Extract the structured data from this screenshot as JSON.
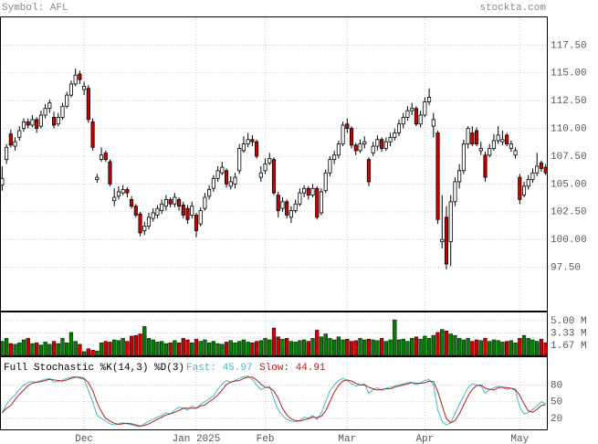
{
  "chart_data": [
    {
      "type": "candlestick",
      "title": "Symbol: AFL",
      "source": "stockta.com",
      "up_color": "#ffffff",
      "down_color": "#cc0000",
      "xlim": [
        -0.5,
        126.5
      ],
      "xticks": [
        {
          "value": 19,
          "label": "Dec"
        },
        {
          "value": 45,
          "label": "Jan 2025"
        },
        {
          "value": 61,
          "label": "Feb"
        },
        {
          "value": 80,
          "label": "Mar"
        },
        {
          "value": 98,
          "label": "Apr"
        },
        {
          "value": 120,
          "label": "May"
        }
      ],
      "ylim": [
        93.6,
        120
      ],
      "yticks": [
        {
          "value": 97.5,
          "label": "97.50"
        },
        {
          "value": 100,
          "label": "100.00"
        },
        {
          "value": 102.5,
          "label": "102.50"
        },
        {
          "value": 105,
          "label": "105.00"
        },
        {
          "value": 107.5,
          "label": "107.50"
        },
        {
          "value": 110,
          "label": "110.00"
        },
        {
          "value": 112.5,
          "label": "112.50"
        },
        {
          "value": 115,
          "label": "115.00"
        },
        {
          "value": 117.5,
          "label": "117.50"
        }
      ],
      "grid": true,
      "ohlc": [
        [
          104.9,
          106.6,
          104.4,
          105.5
        ],
        [
          107.2,
          108.6,
          106.8,
          108.3
        ],
        [
          109.5,
          109.9,
          108.3,
          108.5
        ],
        [
          108.4,
          109.2,
          108.0,
          108.8
        ],
        [
          109.2,
          110.2,
          108.9,
          109.8
        ],
        [
          110.0,
          110.9,
          109.7,
          110.6
        ],
        [
          110.6,
          110.9,
          110.0,
          110.3
        ],
        [
          110.3,
          111.2,
          110.1,
          110.8
        ],
        [
          110.8,
          111.0,
          109.6,
          110.0
        ],
        [
          110.2,
          111.6,
          110.0,
          111.2
        ],
        [
          111.2,
          112.2,
          110.9,
          111.8
        ],
        [
          111.8,
          112.6,
          111.4,
          112.3
        ],
        [
          111.0,
          111.5,
          110.0,
          110.3
        ],
        [
          110.4,
          111.4,
          110.2,
          111.0
        ],
        [
          111.0,
          112.3,
          110.8,
          112.0
        ],
        [
          112.0,
          113.3,
          111.8,
          113.0
        ],
        [
          113.0,
          114.3,
          112.8,
          114.0
        ],
        [
          114.0,
          115.4,
          113.8,
          114.8
        ],
        [
          114.9,
          115.2,
          114.0,
          114.4
        ],
        [
          113.5,
          114.2,
          113.0,
          113.8
        ],
        [
          113.6,
          113.9,
          110.5,
          110.8
        ],
        [
          110.6,
          110.9,
          108.0,
          108.3
        ],
        [
          105.4,
          105.9,
          105.1,
          105.6
        ],
        [
          107.2,
          108.3,
          107.0,
          107.6
        ],
        [
          107.8,
          108.0,
          107.0,
          107.2
        ],
        [
          107.0,
          107.2,
          104.8,
          105.0
        ],
        [
          103.5,
          104.6,
          103.0,
          103.8
        ],
        [
          103.9,
          104.8,
          103.6,
          104.3
        ],
        [
          104.2,
          104.9,
          104.0,
          104.5
        ],
        [
          104.5,
          104.7,
          103.8,
          104.2
        ],
        [
          103.6,
          103.9,
          102.8,
          103.0
        ],
        [
          103.0,
          103.2,
          102.0,
          102.2
        ],
        [
          102.3,
          102.5,
          100.3,
          100.6
        ],
        [
          100.8,
          101.6,
          100.4,
          101.2
        ],
        [
          101.2,
          102.4,
          100.9,
          102.0
        ],
        [
          101.9,
          102.8,
          101.6,
          102.4
        ],
        [
          102.2,
          103.1,
          101.9,
          102.8
        ],
        [
          102.6,
          103.6,
          102.3,
          103.2
        ],
        [
          103.0,
          104.0,
          102.6,
          103.6
        ],
        [
          103.6,
          103.8,
          102.9,
          103.2
        ],
        [
          103.2,
          104.2,
          102.9,
          103.8
        ],
        [
          103.6,
          103.8,
          102.6,
          103.0
        ],
        [
          103.1,
          103.4,
          101.9,
          102.2
        ],
        [
          102.8,
          103.1,
          101.4,
          101.8
        ],
        [
          102.2,
          103.4,
          101.9,
          103.0
        ],
        [
          102.2,
          102.4,
          100.2,
          100.8
        ],
        [
          101.4,
          102.9,
          101.2,
          102.6
        ],
        [
          102.8,
          104.2,
          102.6,
          103.8
        ],
        [
          103.9,
          104.9,
          103.6,
          104.5
        ],
        [
          104.6,
          105.8,
          104.3,
          105.5
        ],
        [
          105.5,
          106.6,
          105.2,
          106.2
        ],
        [
          106.0,
          107.0,
          105.8,
          106.5
        ],
        [
          106.2,
          106.4,
          104.7,
          105.0
        ],
        [
          104.8,
          105.7,
          104.5,
          105.2
        ],
        [
          105.0,
          106.0,
          104.6,
          105.6
        ],
        [
          106.2,
          108.6,
          105.9,
          108.2
        ],
        [
          108.0,
          109.3,
          107.8,
          108.6
        ],
        [
          108.6,
          109.6,
          108.3,
          109.0
        ],
        [
          109.0,
          109.4,
          108.4,
          108.8
        ],
        [
          108.8,
          109.0,
          107.3,
          107.5
        ],
        [
          105.6,
          106.6,
          105.2,
          106.0
        ],
        [
          106.2,
          107.3,
          105.9,
          106.8
        ],
        [
          106.9,
          107.8,
          106.7,
          107.3
        ],
        [
          107.2,
          107.4,
          104.0,
          104.2
        ],
        [
          104.0,
          104.3,
          102.0,
          102.6
        ],
        [
          102.8,
          103.8,
          102.5,
          103.4
        ],
        [
          103.4,
          103.6,
          101.9,
          102.2
        ],
        [
          102.0,
          103.0,
          101.5,
          102.6
        ],
        [
          102.6,
          103.6,
          102.4,
          103.2
        ],
        [
          103.2,
          104.6,
          103.0,
          104.2
        ],
        [
          104.2,
          104.9,
          103.8,
          104.6
        ],
        [
          104.6,
          104.8,
          103.6,
          104.0
        ],
        [
          104.0,
          105.0,
          103.8,
          104.6
        ],
        [
          104.6,
          104.8,
          101.8,
          102.0
        ],
        [
          102.4,
          104.6,
          102.2,
          104.3
        ],
        [
          104.4,
          106.3,
          104.2,
          106.0
        ],
        [
          106.0,
          107.5,
          105.7,
          107.2
        ],
        [
          107.2,
          108.0,
          106.8,
          107.6
        ],
        [
          107.6,
          108.9,
          107.3,
          108.6
        ],
        [
          108.6,
          110.6,
          108.4,
          110.3
        ],
        [
          110.4,
          110.9,
          109.6,
          110.0
        ],
        [
          110.0,
          110.2,
          108.2,
          108.5
        ],
        [
          108.5,
          108.7,
          107.6,
          108.0
        ],
        [
          108.0,
          109.0,
          107.8,
          108.6
        ],
        [
          108.6,
          109.3,
          108.2,
          108.8
        ],
        [
          107.2,
          107.4,
          104.8,
          105.2
        ],
        [
          107.8,
          108.8,
          107.5,
          108.4
        ],
        [
          108.4,
          109.4,
          108.0,
          109.0
        ],
        [
          109.0,
          109.2,
          107.9,
          108.2
        ],
        [
          108.2,
          109.2,
          108.0,
          108.8
        ],
        [
          108.8,
          109.6,
          108.4,
          109.2
        ],
        [
          109.2,
          110.0,
          108.9,
          109.6
        ],
        [
          109.6,
          110.8,
          109.3,
          110.4
        ],
        [
          110.4,
          111.4,
          110.0,
          111.0
        ],
        [
          111.0,
          112.0,
          110.7,
          111.6
        ],
        [
          111.6,
          112.3,
          111.2,
          111.8
        ],
        [
          111.8,
          112.0,
          110.2,
          110.4
        ],
        [
          110.4,
          111.6,
          110.1,
          111.2
        ],
        [
          111.2,
          112.8,
          111.0,
          112.4
        ],
        [
          112.4,
          113.6,
          112.1,
          112.8
        ],
        [
          110.2,
          111.4,
          109.2,
          110.8
        ],
        [
          109.6,
          109.8,
          101.4,
          101.8
        ],
        [
          99.8,
          104.0,
          99.2,
          100.0
        ],
        [
          102.0,
          103.0,
          97.3,
          97.8
        ],
        [
          99.8,
          104.0,
          97.6,
          103.4
        ],
        [
          103.4,
          105.6,
          103.0,
          105.2
        ],
        [
          105.2,
          106.8,
          104.6,
          106.2
        ],
        [
          106.2,
          109.0,
          105.9,
          108.6
        ],
        [
          108.6,
          110.2,
          108.2,
          110.0
        ],
        [
          109.6,
          110.2,
          108.4,
          108.6
        ],
        [
          109.8,
          110.1,
          108.4,
          108.6
        ],
        [
          108.0,
          108.8,
          107.6,
          108.2
        ],
        [
          107.6,
          107.9,
          105.2,
          105.6
        ],
        [
          107.6,
          108.6,
          107.4,
          108.2
        ],
        [
          108.2,
          109.5,
          108.0,
          108.9
        ],
        [
          108.9,
          110.2,
          108.6,
          109.4
        ],
        [
          108.8,
          109.8,
          108.5,
          109.0
        ],
        [
          109.4,
          109.6,
          108.4,
          108.6
        ],
        [
          108.2,
          108.9,
          107.9,
          108.6
        ],
        [
          107.6,
          108.3,
          107.3,
          108.0
        ],
        [
          105.6,
          105.9,
          103.2,
          103.6
        ],
        [
          104.0,
          105.2,
          103.8,
          104.8
        ],
        [
          104.8,
          105.8,
          104.5,
          105.4
        ],
        [
          105.4,
          106.4,
          105.1,
          106.0
        ],
        [
          106.0,
          107.8,
          105.7,
          106.6
        ],
        [
          106.9,
          107.1,
          106.1,
          106.4
        ],
        [
          106.5,
          106.8,
          105.8,
          106.0
        ]
      ]
    },
    {
      "type": "bar",
      "up_color": "#008000",
      "down_color": "#cc0000",
      "ylim": [
        0.3,
        6.1
      ],
      "yticks": [
        {
          "value": 1.67,
          "label": "1.67 M"
        },
        {
          "value": 3.33,
          "label": "3.33 M"
        },
        {
          "value": 5,
          "label": "5.00 M"
        }
      ],
      "values": [
        2.2,
        2.6,
        1.9,
        1.8,
        2.0,
        2.4,
        2.6,
        1.9,
        2.0,
        1.7,
        2.1,
        1.8,
        2.2,
        1.9,
        2.6,
        2.0,
        3.4,
        2.2,
        1.8,
        0.8,
        1.2,
        1.0,
        0.9,
        2.0,
        2.2,
        2.1,
        2.4,
        2.3,
        2.6,
        2.2,
        2.9,
        3.0,
        3.2,
        4.2,
        2.6,
        2.4,
        2.1,
        2.2,
        1.9,
        2.0,
        2.3,
        2.0,
        2.6,
        2.4,
        2.0,
        2.5,
        2.2,
        2.4,
        2.0,
        2.2,
        1.9,
        1.8,
        2.1,
        2.3,
        2.0,
        2.2,
        2.4,
        2.1,
        2.0,
        2.2,
        2.3,
        2.6,
        2.4,
        4.0,
        2.8,
        2.5,
        2.6,
        2.2,
        2.1,
        2.3,
        2.4,
        2.2,
        2.6,
        3.7,
        2.8,
        3.2,
        2.6,
        2.4,
        2.8,
        2.4,
        2.5,
        2.2,
        2.3,
        2.6,
        2.4,
        2.5,
        2.4,
        2.3,
        2.6,
        2.2,
        2.4,
        5.1,
        2.4,
        2.5,
        2.2,
        2.6,
        2.8,
        2.5,
        2.9,
        2.6,
        3.0,
        3.4,
        3.8,
        3.6,
        3.2,
        3.0,
        2.6,
        2.4,
        2.6,
        2.2,
        2.4,
        2.3,
        2.6,
        2.2,
        2.4,
        2.3,
        2.1,
        2.2,
        2.3,
        2.0,
        2.6,
        3.0,
        2.6,
        2.4,
        2.2,
        2.5,
        2.0
      ]
    },
    {
      "type": "line",
      "title": "Full Stochastic %K(14,3) %D(3)",
      "ylim": [
        0,
        130
      ],
      "yticks": [
        20,
        50,
        80
      ],
      "series": [
        {
          "name": "Fast: 45.97",
          "color": "#44b8c8",
          "values": [
            30,
            45,
            55,
            62,
            72,
            80,
            84,
            86,
            85,
            88,
            90,
            92,
            85,
            86,
            89,
            92,
            94,
            95,
            92,
            90,
            70,
            50,
            25,
            20,
            15,
            10,
            8,
            10,
            12,
            10,
            8,
            6,
            5,
            10,
            15,
            18,
            22,
            25,
            30,
            28,
            35,
            40,
            38,
            35,
            42,
            38,
            45,
            50,
            55,
            60,
            72,
            82,
            88,
            85,
            88,
            92,
            95,
            96,
            90,
            80,
            72,
            75,
            78,
            55,
            35,
            25,
            18,
            15,
            14,
            16,
            22,
            20,
            25,
            18,
            30,
            50,
            70,
            80,
            88,
            92,
            88,
            82,
            78,
            80,
            82,
            65,
            72,
            75,
            70,
            74,
            76,
            78,
            80,
            82,
            84,
            85,
            80,
            84,
            88,
            90,
            80,
            35,
            15,
            8,
            12,
            28,
            45,
            60,
            75,
            82,
            80,
            78,
            65,
            72,
            75,
            78,
            76,
            72,
            74,
            70,
            40,
            28,
            30,
            36,
            42,
            50,
            45.97
          ]
        },
        {
          "name": "Slow: 44.91",
          "color": "#b02020",
          "values": [
            30,
            38,
            43,
            54,
            63,
            71,
            79,
            83,
            85,
            86,
            88,
            90,
            89,
            88,
            87,
            89,
            92,
            94,
            94,
            92,
            84,
            70,
            48,
            32,
            20,
            15,
            11,
            9,
            10,
            11,
            10,
            8,
            6,
            7,
            10,
            14,
            18,
            22,
            26,
            28,
            31,
            34,
            38,
            38,
            38,
            38,
            42,
            44,
            50,
            55,
            62,
            71,
            81,
            85,
            87,
            88,
            92,
            94,
            94,
            89,
            81,
            76,
            75,
            69,
            56,
            38,
            26,
            19,
            16,
            15,
            17,
            19,
            22,
            21,
            24,
            33,
            50,
            67,
            79,
            87,
            89,
            87,
            83,
            80,
            80,
            76,
            73,
            71,
            72,
            73,
            73,
            76,
            78,
            80,
            82,
            84,
            83,
            83,
            84,
            87,
            86,
            68,
            43,
            19,
            12,
            16,
            28,
            44,
            60,
            72,
            79,
            80,
            74,
            72,
            71,
            75,
            76,
            75,
            74,
            72,
            61,
            46,
            33,
            31,
            36,
            43,
            44.91
          ]
        }
      ]
    }
  ]
}
